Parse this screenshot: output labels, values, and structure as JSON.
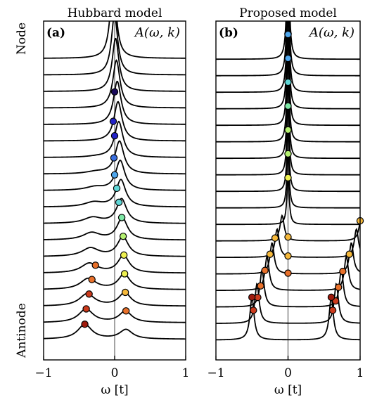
{
  "side_labels": {
    "top": "Node",
    "bottom": "Antinode"
  },
  "colors": {
    "curve": "#000000",
    "zero_line": "#8c8c8c",
    "marker_palette": [
      "#1a0a5c",
      "#2222c8",
      "#3a6fe0",
      "#4fa6ec",
      "#5ed6d6",
      "#7ee8a6",
      "#b4f070",
      "#eef050",
      "#f5b83a",
      "#e8702a",
      "#cc3a1c",
      "#a01a0c"
    ]
  },
  "chart_data": [
    {
      "type": "line",
      "panel_tag": "(a)",
      "title": "Hubbard model",
      "annotation": "A(ω, k)",
      "xlabel": "ω [t]",
      "ylabel": "",
      "xlim": [
        -1,
        1
      ],
      "xticks": [
        -1,
        0,
        1
      ],
      "xtick_labels": [
        "−1",
        "0",
        "1"
      ],
      "zero_line": 0,
      "grid": false,
      "curve_shape": "broad quasiparticle peak plus a weaker low-energy hump",
      "num_curves": 18,
      "peak_positions": [
        0.0,
        -0.02,
        0.0,
        -0.01,
        0.0,
        0.03,
        0.06,
        0.1,
        0.12,
        0.13,
        0.14,
        0.15,
        0.16
      ],
      "hump_positions": [
        -0.27,
        -0.32,
        -0.36,
        -0.4,
        -0.42
      ]
    },
    {
      "type": "line",
      "panel_tag": "(b)",
      "title": "Proposed model",
      "annotation": "A(ω, k)",
      "xlabel": "ω [t]",
      "ylabel": "",
      "xlim": [
        -1,
        1
      ],
      "xticks": [
        -1,
        0,
        1
      ],
      "xtick_labels": [
        "−1",
        "0",
        "1"
      ],
      "zero_line": 0,
      "grid": false,
      "curve_shape": "sharp Lorentzian peaks; the band splits into two branches toward the antinode",
      "num_curves": 18,
      "peak_positions": [
        0,
        0,
        0,
        0,
        0,
        0,
        0,
        0,
        0,
        0,
        0,
        0,
        0,
        0
      ],
      "split_left": [
        -0.18,
        -0.25,
        -0.32,
        -0.38,
        -0.42,
        -0.48,
        -0.5
      ],
      "split_right": [
        1.0,
        0.85,
        0.76,
        0.7,
        0.66,
        0.62,
        0.6
      ]
    }
  ]
}
